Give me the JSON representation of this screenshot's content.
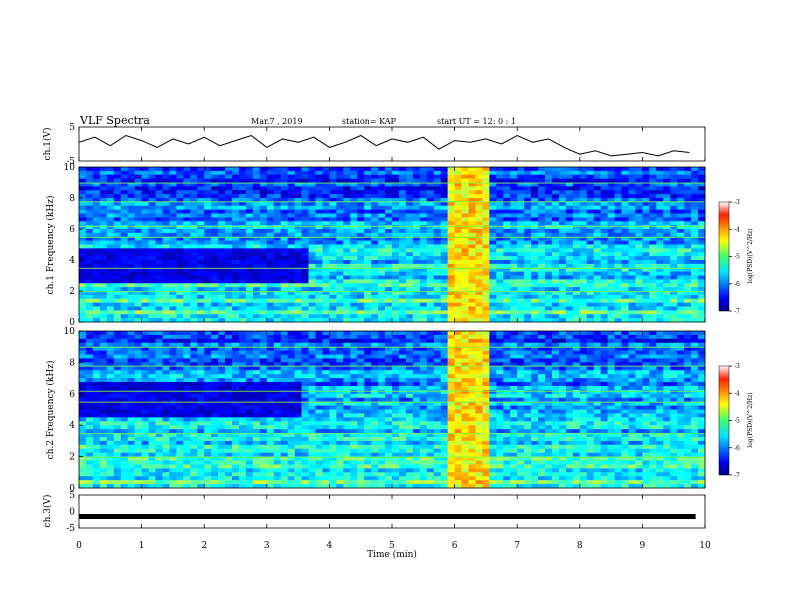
{
  "header": {
    "title": "VLF Spectra",
    "date": "Mar.7 , 2019",
    "station": "station= KAP",
    "start": "start UT =  12: 0  : 1"
  },
  "chart_data": [
    {
      "type": "line",
      "name": "ch1-waveform",
      "ylabel": "ch.1(V)",
      "ylim": [
        -5,
        5
      ],
      "yticks": [
        "5",
        "-5"
      ],
      "xlim": [
        0,
        10
      ],
      "x": [
        0,
        0.25,
        0.5,
        0.75,
        1,
        1.25,
        1.5,
        1.75,
        2,
        2.25,
        2.5,
        2.75,
        3,
        3.25,
        3.5,
        3.75,
        4,
        4.25,
        4.5,
        4.75,
        5,
        5.25,
        5.5,
        5.75,
        6,
        6.25,
        6.5,
        6.75,
        7,
        7.25,
        7.5,
        7.75,
        8,
        8.25,
        8.5,
        8.75,
        9,
        9.25,
        9.5,
        9.75
      ],
      "y": [
        0.5,
        2,
        -0.5,
        2.5,
        1,
        -1,
        1.5,
        0,
        2,
        -0.5,
        1,
        2.5,
        -1,
        1.5,
        0.5,
        2,
        -1,
        0.5,
        2.5,
        -0.5,
        1.5,
        0.5,
        2,
        -1.5,
        1,
        0.5,
        1.5,
        0,
        2.5,
        0.5,
        1.5,
        -1,
        -3,
        -2,
        -3.5,
        -3,
        -2.5,
        -3.5,
        -2,
        -2.5
      ],
      "color": "#000000"
    },
    {
      "type": "heatmap",
      "name": "ch1-spectrogram",
      "ylabel": "ch.1 Frequency (kHz)",
      "ylim": [
        0,
        10
      ],
      "yticks": [
        "0",
        "2",
        "4",
        "6",
        "8",
        "10"
      ],
      "xlim": [
        0,
        10
      ],
      "colorbar": {
        "label": "log(PSD)(V^2/Hz)",
        "ticks": [
          "-3",
          "-4",
          "-5",
          "-6",
          "-7"
        ],
        "range": [
          -7,
          -3
        ]
      }
    },
    {
      "type": "heatmap",
      "name": "ch2-spectrogram",
      "ylabel": "ch.2 Frequency (kHz)",
      "ylim": [
        0,
        10
      ],
      "yticks": [
        "0",
        "2",
        "4",
        "6",
        "8",
        "10"
      ],
      "xlim": [
        0,
        10
      ],
      "colorbar": {
        "label": "log(PSD)(V^2/Hz)",
        "ticks": [
          "-3",
          "-4",
          "-5",
          "-6",
          "-7"
        ],
        "range": [
          -7,
          -3
        ]
      }
    },
    {
      "type": "line",
      "name": "ch3-waveform",
      "ylabel": "ch.3(V)",
      "ylim": [
        -5,
        5
      ],
      "yticks": [
        "5",
        "0",
        "-5"
      ],
      "xlim": [
        0,
        10
      ],
      "x": [
        0,
        9.85
      ],
      "y": [
        -1.5,
        -1.5
      ],
      "color": "#000000"
    }
  ],
  "xaxis": {
    "label": "Time (min)",
    "ticks": [
      "0",
      "1",
      "2",
      "3",
      "4",
      "5",
      "6",
      "7",
      "8",
      "9",
      "10"
    ]
  }
}
